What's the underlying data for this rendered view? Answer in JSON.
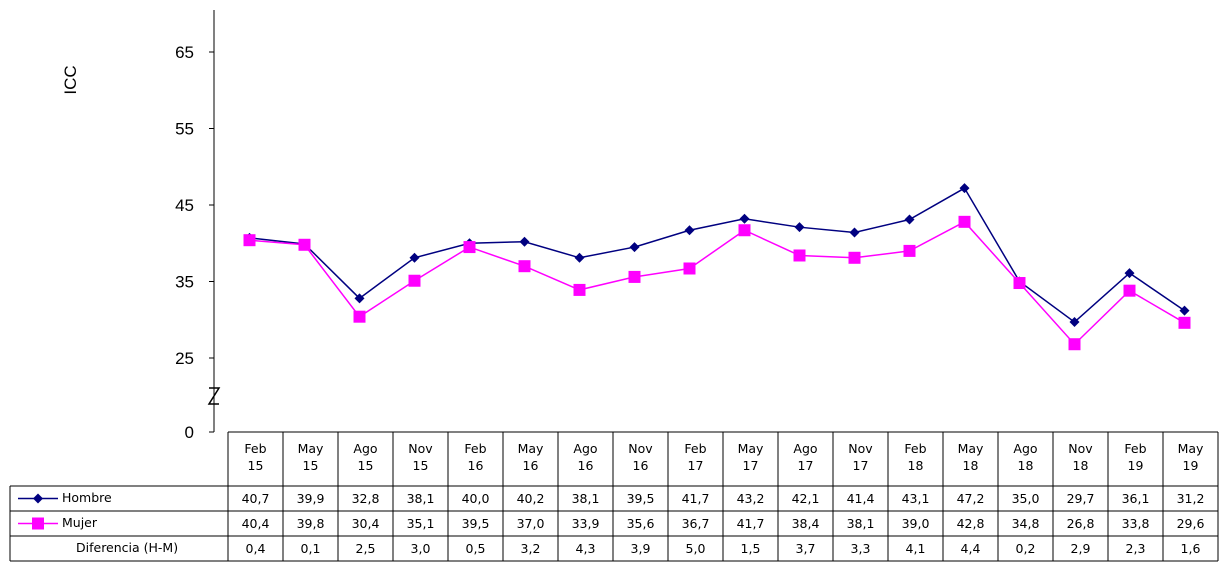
{
  "chart_data": {
    "type": "line",
    "y_label": "ICC",
    "categories": [
      "Feb\n15",
      "May\n15",
      "Ago\n15",
      "Nov\n15",
      "Feb\n16",
      "May\n16",
      "Ago\n16",
      "Nov\n16",
      "Feb\n17",
      "May\n17",
      "Ago\n17",
      "Nov\n17",
      "Feb\n18",
      "May\n18",
      "Ago\n18",
      "Nov\n18",
      "Feb\n19",
      "May\n19"
    ],
    "series": [
      {
        "name": "Hombre",
        "color": "#000080",
        "marker": "diamond",
        "values": [
          40.7,
          39.9,
          32.8,
          38.1,
          40.0,
          40.2,
          38.1,
          39.5,
          41.7,
          43.2,
          42.1,
          41.4,
          43.1,
          47.2,
          35.0,
          29.7,
          36.1,
          31.2
        ],
        "value_labels": [
          "40,7",
          "39,9",
          "32,8",
          "38,1",
          "40,0",
          "40,2",
          "38,1",
          "39,5",
          "41,7",
          "43,2",
          "42,1",
          "41,4",
          "43,1",
          "47,2",
          "35,0",
          "29,7",
          "36,1",
          "31,2"
        ]
      },
      {
        "name": "Mujer",
        "color": "#ff00ff",
        "marker": "square",
        "values": [
          40.4,
          39.8,
          30.4,
          35.1,
          39.5,
          37.0,
          33.9,
          35.6,
          36.7,
          41.7,
          38.4,
          38.1,
          39.0,
          42.8,
          34.8,
          26.8,
          33.8,
          29.6
        ],
        "value_labels": [
          "40,4",
          "39,8",
          "30,4",
          "35,1",
          "39,5",
          "37,0",
          "33,9",
          "35,6",
          "36,7",
          "41,7",
          "38,4",
          "38,1",
          "39,0",
          "42,8",
          "34,8",
          "26,8",
          "33,8",
          "29,6"
        ]
      }
    ],
    "difference": {
      "name": "Diferencia (H-M)",
      "values": [
        0.4,
        0.1,
        2.5,
        3.0,
        0.5,
        3.2,
        4.3,
        3.9,
        5.0,
        1.5,
        3.7,
        3.3,
        4.1,
        4.4,
        0.2,
        2.9,
        2.3,
        1.6
      ],
      "value_labels": [
        "0,4",
        "0,1",
        "2,5",
        "3,0",
        "0,5",
        "3,2",
        "4,3",
        "3,9",
        "5,0",
        "1,5",
        "3,7",
        "3,3",
        "4,1",
        "4,4",
        "0,2",
        "2,9",
        "2,3",
        "1,6"
      ]
    },
    "ylim": [
      0,
      70
    ],
    "yticks": [
      0,
      25,
      35,
      45,
      55,
      65
    ],
    "axis_break": true,
    "grid": false
  }
}
